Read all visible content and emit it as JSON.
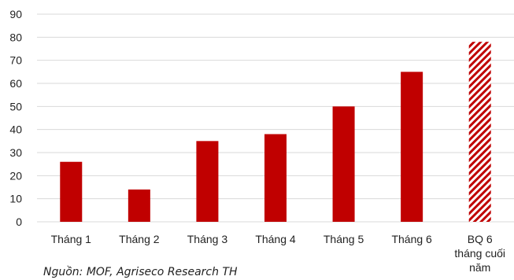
{
  "chart_data": {
    "type": "bar",
    "categories": [
      "Tháng 1",
      "Tháng 2",
      "Tháng 3",
      "Tháng 4",
      "Tháng 5",
      "Tháng 6",
      "BQ 6 tháng cuối năm"
    ],
    "category_label_lines": [
      [
        "Tháng 1"
      ],
      [
        "Tháng 2"
      ],
      [
        "Tháng 3"
      ],
      [
        "Tháng 4"
      ],
      [
        "Tháng 5"
      ],
      [
        "Tháng 6"
      ],
      [
        "BQ 6",
        "tháng cuối",
        "năm"
      ]
    ],
    "values": [
      26,
      14,
      35,
      38,
      50,
      65,
      78
    ],
    "highlight_pattern": [
      false,
      false,
      false,
      false,
      false,
      false,
      true
    ],
    "ylim": [
      0,
      90
    ],
    "yticks": [
      0,
      10,
      20,
      30,
      40,
      50,
      60,
      70,
      80,
      90
    ],
    "grid": true,
    "title": "",
    "xlabel": "",
    "ylabel": ""
  },
  "colors": {
    "bar": "#c00000",
    "grid": "#d9d9d9"
  },
  "source_note": "Nguồn: MOF, Agriseco Research TH"
}
